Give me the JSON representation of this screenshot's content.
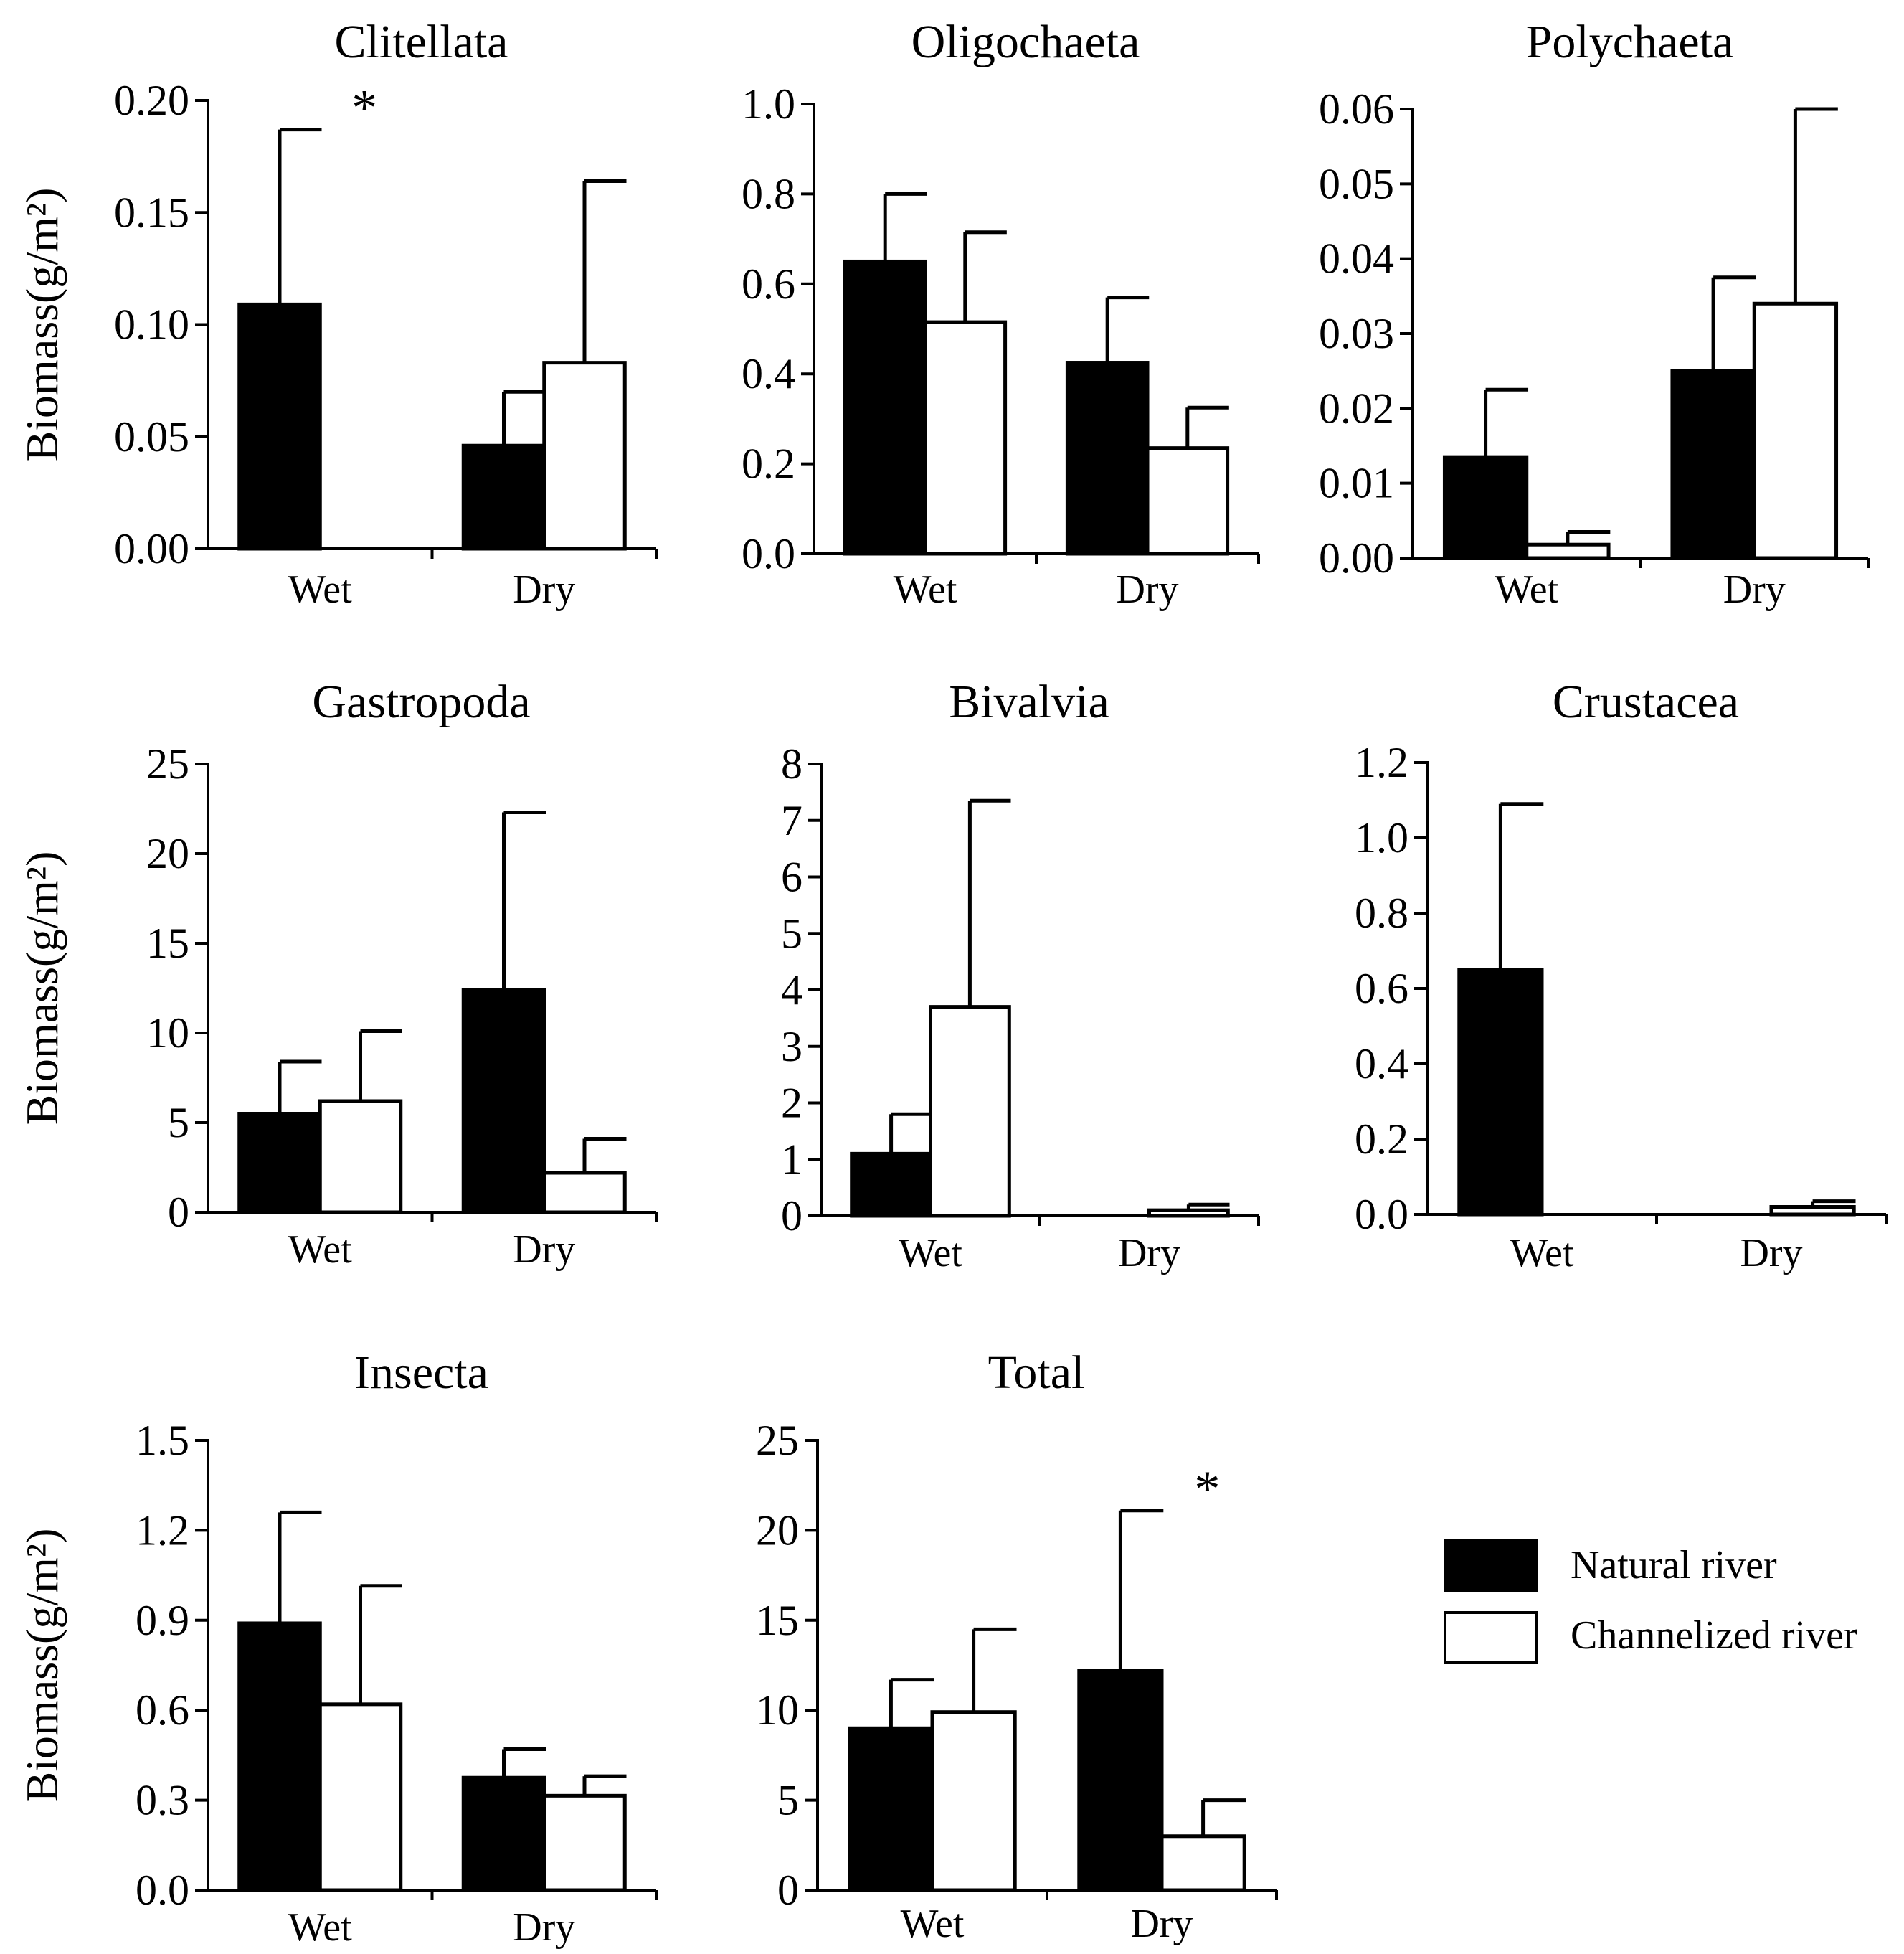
{
  "colors": {
    "natural": "#000000",
    "channelized": "#ffffff",
    "stroke": "#000000"
  },
  "y_axis_label": "Biomass(g/m²)",
  "legend": {
    "position": "bottom-right",
    "items": [
      {
        "label": "Natural river",
        "color": "#000000"
      },
      {
        "label": "Channelized river",
        "color": "#ffffff"
      }
    ]
  },
  "chart_data": [
    {
      "type": "bar",
      "title": "Clitellata",
      "ylabel": "Biomass(g/m²)",
      "categories": [
        "Wet",
        "Dry"
      ],
      "ylim": [
        0,
        0.2
      ],
      "yticks": [
        "0.00",
        "0.05",
        "0.10",
        "0.15",
        "0.20"
      ],
      "series": [
        {
          "name": "Natural river",
          "values": [
            0.109,
            0.046
          ],
          "errors": [
            0.078,
            0.024
          ]
        },
        {
          "name": "Channelized river",
          "values": [
            0,
            0.083
          ],
          "errors": [
            0,
            0.081
          ]
        }
      ],
      "annotations": [
        {
          "text": "*",
          "category": "Wet"
        }
      ]
    },
    {
      "type": "bar",
      "title": "Oligochaeta",
      "ylabel": "",
      "categories": [
        "Wet",
        "Dry"
      ],
      "ylim": [
        0,
        1.0
      ],
      "yticks": [
        "0.0",
        "0.2",
        "0.4",
        "0.6",
        "0.8",
        "1.0"
      ],
      "series": [
        {
          "name": "Natural river",
          "values": [
            0.65,
            0.425
          ],
          "errors": [
            0.15,
            0.145
          ]
        },
        {
          "name": "Channelized river",
          "values": [
            0.515,
            0.235
          ],
          "errors": [
            0.2,
            0.09
          ]
        }
      ],
      "annotations": []
    },
    {
      "type": "bar",
      "title": "Polychaeta",
      "ylabel": "",
      "categories": [
        "Wet",
        "Dry"
      ],
      "ylim": [
        0,
        0.06
      ],
      "yticks": [
        "0.00",
        "0.01",
        "0.02",
        "0.03",
        "0.04",
        "0.05",
        "0.06"
      ],
      "series": [
        {
          "name": "Natural river",
          "values": [
            0.0135,
            0.025
          ],
          "errors": [
            0.009,
            0.0125
          ]
        },
        {
          "name": "Channelized river",
          "values": [
            0.0018,
            0.034
          ],
          "errors": [
            0.0017,
            0.026
          ]
        }
      ],
      "annotations": []
    },
    {
      "type": "bar",
      "title": "Gastropoda",
      "ylabel": "Biomass(g/m²)",
      "categories": [
        "Wet",
        "Dry"
      ],
      "ylim": [
        0,
        25
      ],
      "yticks": [
        "0",
        "5",
        "10",
        "15",
        "20",
        "25"
      ],
      "series": [
        {
          "name": "Natural river",
          "values": [
            5.5,
            12.4
          ],
          "errors": [
            2.9,
            9.9
          ]
        },
        {
          "name": "Channelized river",
          "values": [
            6.2,
            2.2
          ],
          "errors": [
            3.9,
            1.9
          ]
        }
      ],
      "annotations": []
    },
    {
      "type": "bar",
      "title": "Bivalvia",
      "ylabel": "",
      "categories": [
        "Wet",
        "Dry"
      ],
      "ylim": [
        0,
        8
      ],
      "yticks": [
        "0",
        "1",
        "2",
        "3",
        "4",
        "5",
        "6",
        "7",
        "8"
      ],
      "series": [
        {
          "name": "Natural river",
          "values": [
            1.1,
            0
          ],
          "errors": [
            0.7,
            0
          ]
        },
        {
          "name": "Channelized river",
          "values": [
            3.7,
            0.1
          ],
          "errors": [
            3.65,
            0.1
          ]
        }
      ],
      "annotations": []
    },
    {
      "type": "bar",
      "title": "Crustacea",
      "ylabel": "",
      "categories": [
        "Wet",
        "Dry"
      ],
      "ylim": [
        0,
        1.2
      ],
      "yticks": [
        "0.0",
        "0.2",
        "0.4",
        "0.6",
        "0.8",
        "1.0",
        "1.2"
      ],
      "series": [
        {
          "name": "Natural river",
          "values": [
            0.65,
            0
          ],
          "errors": [
            0.44,
            0
          ]
        },
        {
          "name": "Channelized river",
          "values": [
            0,
            0.02
          ],
          "errors": [
            0,
            0.015
          ]
        }
      ],
      "annotations": []
    },
    {
      "type": "bar",
      "title": "Insecta",
      "ylabel": "Biomass(g/m²)",
      "categories": [
        "Wet",
        "Dry"
      ],
      "ylim": [
        0,
        1.5
      ],
      "yticks": [
        "0.0",
        "0.3",
        "0.6",
        "0.9",
        "1.2",
        "1.5"
      ],
      "series": [
        {
          "name": "Natural river",
          "values": [
            0.89,
            0.375
          ],
          "errors": [
            0.37,
            0.095
          ]
        },
        {
          "name": "Channelized river",
          "values": [
            0.62,
            0.315
          ],
          "errors": [
            0.395,
            0.065
          ]
        }
      ],
      "annotations": []
    },
    {
      "type": "bar",
      "title": "Total",
      "ylabel": "",
      "categories": [
        "Wet",
        "Dry"
      ],
      "ylim": [
        0,
        25
      ],
      "yticks": [
        "0",
        "5",
        "10",
        "15",
        "20",
        "25"
      ],
      "series": [
        {
          "name": "Natural river",
          "values": [
            9.0,
            12.2
          ],
          "errors": [
            2.7,
            8.9
          ]
        },
        {
          "name": "Channelized river",
          "values": [
            9.9,
            3.0
          ],
          "errors": [
            4.6,
            2.0
          ]
        }
      ],
      "annotations": [
        {
          "text": "*",
          "category": "Dry"
        }
      ]
    }
  ]
}
